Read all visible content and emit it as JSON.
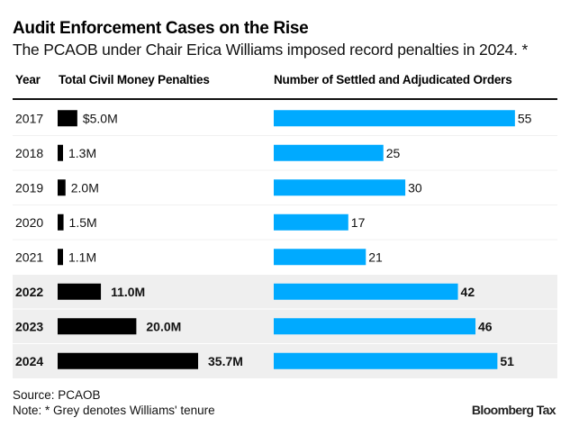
{
  "chart_data": {
    "type": "table",
    "title": "Audit Enforcement Cases on the Rise",
    "subtitle": "The PCAOB under Chair Erica Williams imposed record penalties in 2024. *",
    "columns": [
      "Year",
      "Total Civil Money Penalties",
      "Number of Settled and Adjudicated Orders"
    ],
    "categories": [
      "2017",
      "2018",
      "2019",
      "2020",
      "2021",
      "2022",
      "2023",
      "2024"
    ],
    "series": [
      {
        "name": "Total Civil Money Penalties",
        "unit": "$M",
        "color": "#000000",
        "values": [
          5.0,
          1.3,
          2.0,
          1.5,
          1.1,
          11.0,
          20.0,
          35.7
        ],
        "labels": [
          "$5.0M",
          "1.3M",
          "2.0M",
          "1.5M",
          "1.1M",
          "11.0M",
          "20.0M",
          "35.7M"
        ]
      },
      {
        "name": "Number of Settled and Adjudicated Orders",
        "unit": "orders",
        "color": "#00AAFF",
        "values": [
          55,
          25,
          30,
          17,
          21,
          42,
          46,
          51
        ],
        "labels": [
          "55",
          "25",
          "30",
          "17",
          "21",
          "42",
          "46",
          "51"
        ]
      }
    ],
    "highlighted": [
      false,
      false,
      false,
      false,
      false,
      true,
      true,
      true
    ],
    "highlight_color": "#EFEFEF",
    "highlight_meaning": "Grey denotes Williams' tenure",
    "source": "Source: PCAOB",
    "note": "Note: * Grey denotes Williams' tenure",
    "brand": "Bloomberg Tax"
  }
}
